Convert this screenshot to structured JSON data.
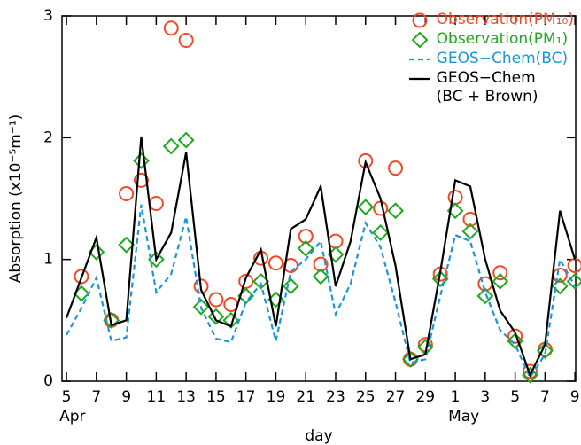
{
  "chart_data": {
    "type": "line",
    "xlabel": "day",
    "ylabel": "Absorption (x10⁻⁵m⁻¹)",
    "x": [
      5,
      6,
      7,
      8,
      9,
      10,
      11,
      12,
      13,
      14,
      15,
      16,
      17,
      18,
      19,
      20,
      21,
      22,
      23,
      24,
      25,
      26,
      27,
      28,
      29,
      30,
      31,
      32,
      33,
      34,
      35,
      36,
      37,
      38,
      39
    ],
    "month_labels": [
      {
        "value": 5,
        "label": "Apr"
      },
      {
        "value": 31,
        "label": "May"
      }
    ],
    "series": [
      {
        "name": "Observation(PM₁₀)",
        "color": "#f04a24",
        "marker": "circle",
        "values": [
          null,
          0.86,
          null,
          0.5,
          1.54,
          1.65,
          1.46,
          2.9,
          2.8,
          0.78,
          0.67,
          0.63,
          0.82,
          1.01,
          0.97,
          0.95,
          1.19,
          0.96,
          1.15,
          null,
          1.81,
          1.42,
          1.75,
          0.18,
          0.3,
          0.88,
          1.51,
          1.33,
          0.8,
          0.89,
          0.37,
          0.08,
          0.26,
          0.87,
          0.95
        ]
      },
      {
        "name": "Observation(PM₁)",
        "color": "#1fa81f",
        "marker": "diamond",
        "values": [
          null,
          0.72,
          1.06,
          0.5,
          1.12,
          1.81,
          1.0,
          1.93,
          1.98,
          0.61,
          0.53,
          0.5,
          0.7,
          0.82,
          0.67,
          0.78,
          1.09,
          0.86,
          1.04,
          null,
          1.43,
          1.22,
          1.4,
          0.18,
          0.28,
          0.84,
          1.4,
          1.23,
          0.7,
          0.82,
          0.33,
          0.05,
          0.25,
          0.78,
          0.82
        ]
      },
      {
        "name": "GEOS−Chem(BC)",
        "color": "#1c96d4",
        "marker": "dashed",
        "values": [
          0.38,
          0.6,
          0.85,
          0.33,
          0.36,
          1.45,
          0.73,
          0.88,
          1.35,
          0.6,
          0.35,
          0.32,
          0.65,
          0.8,
          0.33,
          0.9,
          1.0,
          1.15,
          0.55,
          0.8,
          1.3,
          1.1,
          0.65,
          0.15,
          0.18,
          0.7,
          1.2,
          1.15,
          0.73,
          0.42,
          0.3,
          0.03,
          0.22,
          1.0,
          0.78
        ]
      },
      {
        "name": "GEOS−Chem\n(BC + Brown)",
        "color": "#000000",
        "marker": "solid",
        "values": [
          0.52,
          0.85,
          1.18,
          0.46,
          0.5,
          2.01,
          1.0,
          1.22,
          1.88,
          0.75,
          0.5,
          0.45,
          0.85,
          1.08,
          0.45,
          1.25,
          1.33,
          1.6,
          0.78,
          1.15,
          1.8,
          1.5,
          0.95,
          0.18,
          0.22,
          0.9,
          1.65,
          1.6,
          1.0,
          0.58,
          0.4,
          0.05,
          0.3,
          1.4,
          1.0
        ]
      }
    ],
    "xlim": [
      4.7,
      39.05
    ],
    "xticks": [
      5,
      7,
      9,
      11,
      13,
      15,
      17,
      19,
      21,
      23,
      25,
      27,
      29,
      {
        "value": 31,
        "label": "1"
      },
      {
        "value": 33,
        "label": "3"
      },
      {
        "value": 35,
        "label": "5"
      },
      {
        "value": 37,
        "label": "7"
      },
      {
        "value": 39,
        "label": "9"
      }
    ],
    "ylim": [
      0,
      3
    ],
    "yticks": [
      0,
      1,
      2,
      3
    ],
    "legend": "upper right"
  }
}
